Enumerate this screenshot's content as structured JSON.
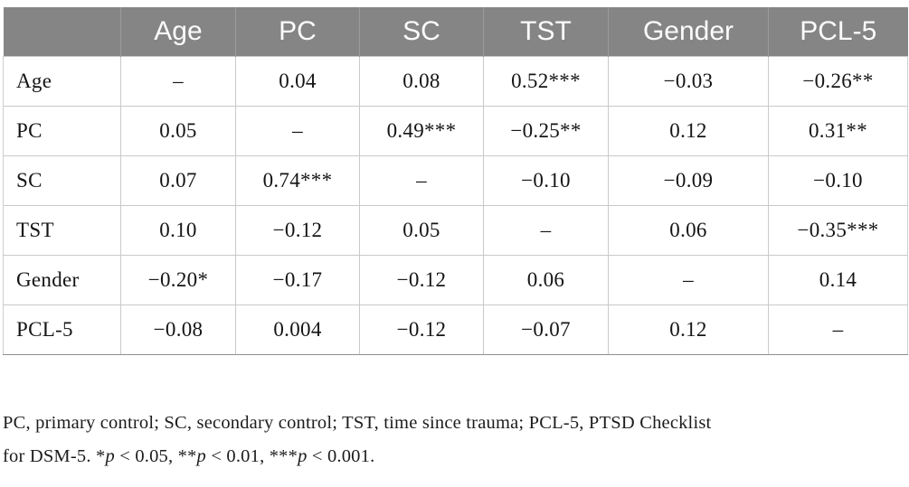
{
  "table": {
    "columns": [
      "",
      "Age",
      "PC",
      "SC",
      "TST",
      "Gender",
      "PCL-5"
    ],
    "rows": [
      {
        "label": "Age",
        "values": [
          "–",
          "0.04",
          "0.08",
          "0.52***",
          "−0.03",
          "−0.26**"
        ]
      },
      {
        "label": "PC",
        "values": [
          "0.05",
          "–",
          "0.49***",
          "−0.25**",
          "0.12",
          "0.31**"
        ]
      },
      {
        "label": "SC",
        "values": [
          "0.07",
          "0.74***",
          "–",
          "−0.10",
          "−0.09",
          "−0.10"
        ]
      },
      {
        "label": "TST",
        "values": [
          "0.10",
          "−0.12",
          "0.05",
          "–",
          "0.06",
          "−0.35***"
        ]
      },
      {
        "label": "Gender",
        "values": [
          "−0.20*",
          "−0.17",
          "−0.12",
          "0.06",
          "–",
          "0.14"
        ]
      },
      {
        "label": "PCL-5",
        "values": [
          "−0.08",
          "0.004",
          "−0.12",
          "−0.07",
          "0.12",
          "–"
        ]
      }
    ]
  },
  "style": {
    "header_bg": "#858585",
    "header_text": "#fbfbfb",
    "border_light": "#c9c9c9",
    "border_dark": "#8e8e8e",
    "body_text": "#141414"
  },
  "footnote": {
    "lines": [
      [
        {
          "text": "PC, primary control; SC, secondary control; TST, time since trauma; PCL-5, PTSD Checklist",
          "italic": false
        }
      ],
      [
        {
          "text": "for DSM-5. *",
          "italic": false
        },
        {
          "text": "p",
          "italic": true
        },
        {
          "text": " < 0.05, **",
          "italic": false
        },
        {
          "text": "p",
          "italic": true
        },
        {
          "text": " < 0.01, ***",
          "italic": false
        },
        {
          "text": "p",
          "italic": true
        },
        {
          "text": " < 0.001.",
          "italic": false
        }
      ]
    ]
  }
}
